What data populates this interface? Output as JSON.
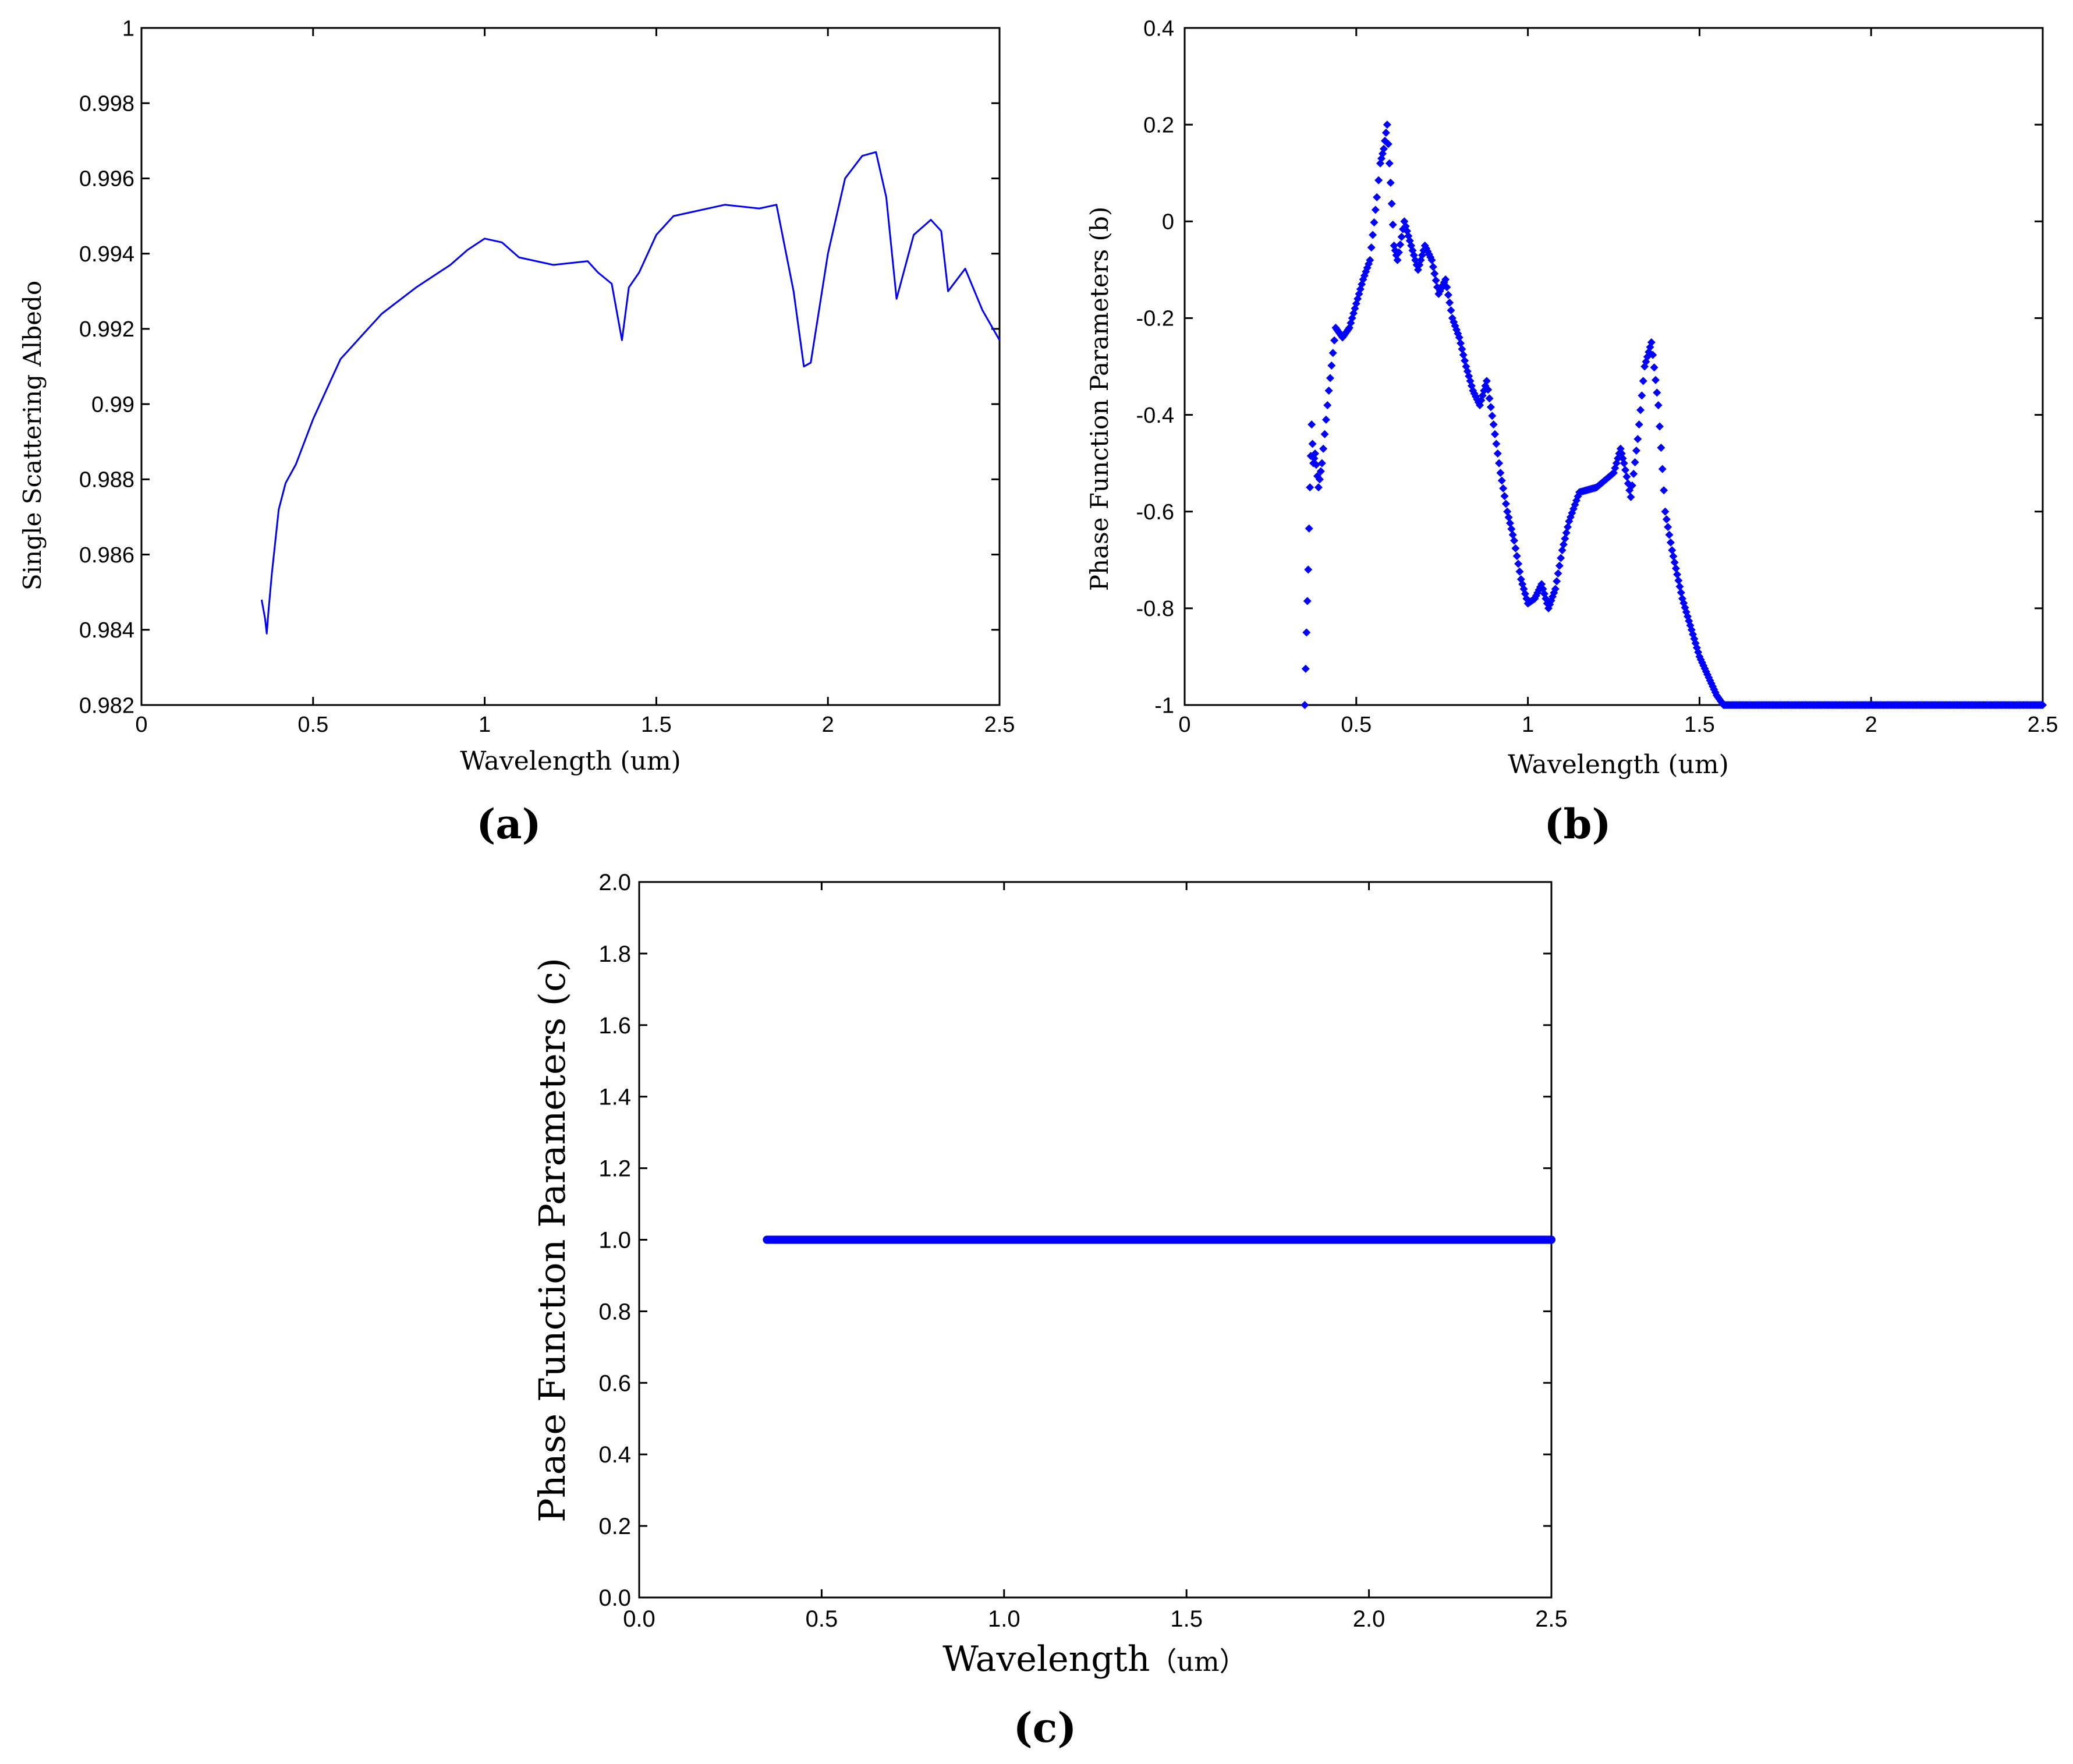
{
  "chart_data": [
    {
      "id": "a",
      "type": "line",
      "panel_label": "(a)",
      "xlabel": "Wavelength (um)",
      "ylabel": "Single Scattering Albedo",
      "xlim": [
        0,
        2.5
      ],
      "ylim": [
        0.982,
        1
      ],
      "xticks": [
        0,
        0.5,
        1,
        1.5,
        2,
        2.5
      ],
      "xtick_labels": [
        "0",
        "0.5",
        "1",
        "1.5",
        "2",
        "2.5"
      ],
      "yticks": [
        0.982,
        0.984,
        0.986,
        0.988,
        0.99,
        0.992,
        0.994,
        0.996,
        0.998,
        1
      ],
      "ytick_labels": [
        "0.982",
        "0.984",
        "0.986",
        "0.988",
        "0.99",
        "0.992",
        "0.994",
        "0.996",
        "0.998",
        "1"
      ],
      "color": "#0000ff",
      "series": [
        {
          "name": "albedo",
          "x": [
            0.35,
            0.36,
            0.365,
            0.37,
            0.38,
            0.4,
            0.42,
            0.45,
            0.5,
            0.55,
            0.58,
            0.6,
            0.65,
            0.7,
            0.8,
            0.9,
            0.95,
            1.0,
            1.05,
            1.1,
            1.2,
            1.3,
            1.33,
            1.37,
            1.4,
            1.42,
            1.45,
            1.5,
            1.55,
            1.6,
            1.7,
            1.8,
            1.85,
            1.9,
            1.93,
            1.95,
            2.0,
            2.05,
            2.1,
            2.14,
            2.17,
            2.2,
            2.25,
            2.3,
            2.33,
            2.35,
            2.4,
            2.45,
            2.5
          ],
          "y": [
            0.9848,
            0.9843,
            0.9839,
            0.9845,
            0.9855,
            0.9872,
            0.9879,
            0.9884,
            0.9896,
            0.9906,
            0.9912,
            0.9914,
            0.9919,
            0.9924,
            0.9931,
            0.9937,
            0.9941,
            0.9944,
            0.9943,
            0.9939,
            0.9937,
            0.9938,
            0.9935,
            0.9932,
            0.9917,
            0.9931,
            0.9935,
            0.9945,
            0.995,
            0.9951,
            0.9953,
            0.9952,
            0.9953,
            0.993,
            0.991,
            0.9911,
            0.994,
            0.996,
            0.9966,
            0.9967,
            0.9955,
            0.9928,
            0.9945,
            0.9949,
            0.9946,
            0.993,
            0.9936,
            0.9925,
            0.9917
          ]
        }
      ]
    },
    {
      "id": "b",
      "type": "scatter",
      "panel_label": "(b)",
      "xlabel": "Wavelength (um)",
      "ylabel": "Phase Function Parameters  (b)",
      "xlim": [
        0,
        2.5
      ],
      "ylim": [
        -1,
        0.4
      ],
      "xticks": [
        0,
        0.5,
        1,
        1.5,
        2,
        2.5
      ],
      "xtick_labels": [
        "0",
        "0.5",
        "1",
        "1.5",
        "2",
        "2.5"
      ],
      "yticks": [
        -1,
        -0.8,
        -0.6,
        -0.4,
        -0.2,
        0,
        0.2,
        0.4
      ],
      "ytick_labels": [
        "-1",
        "-0.8",
        "-0.6",
        "-0.4",
        "-0.2",
        "0",
        "0.2",
        "0.4"
      ],
      "color": "#0000ff",
      "series": [
        {
          "name": "b",
          "x": [
            0.35,
            0.355,
            0.36,
            0.365,
            0.37,
            0.375,
            0.38,
            0.39,
            0.4,
            0.42,
            0.44,
            0.46,
            0.48,
            0.5,
            0.52,
            0.54,
            0.56,
            0.57,
            0.58,
            0.59,
            0.6,
            0.61,
            0.62,
            0.64,
            0.66,
            0.68,
            0.7,
            0.72,
            0.74,
            0.76,
            0.78,
            0.8,
            0.82,
            0.84,
            0.86,
            0.88,
            0.9,
            0.92,
            0.94,
            0.96,
            0.98,
            1.0,
            1.02,
            1.04,
            1.06,
            1.08,
            1.1,
            1.12,
            1.15,
            1.2,
            1.25,
            1.27,
            1.28,
            1.3,
            1.32,
            1.34,
            1.36,
            1.38,
            1.4,
            1.42,
            1.45,
            1.5,
            1.55,
            1.57,
            1.6,
            1.7,
            1.8,
            1.9,
            2.0,
            2.1,
            2.2,
            2.3,
            2.4,
            2.5
          ],
          "y": [
            -1.0,
            -0.85,
            -0.72,
            -0.55,
            -0.42,
            -0.5,
            -0.48,
            -0.55,
            -0.5,
            -0.35,
            -0.22,
            -0.24,
            -0.22,
            -0.17,
            -0.12,
            -0.08,
            0.05,
            0.12,
            0.15,
            0.2,
            0.08,
            -0.05,
            -0.08,
            0.0,
            -0.05,
            -0.1,
            -0.05,
            -0.08,
            -0.15,
            -0.12,
            -0.2,
            -0.24,
            -0.3,
            -0.35,
            -0.38,
            -0.33,
            -0.42,
            -0.52,
            -0.6,
            -0.66,
            -0.74,
            -0.79,
            -0.78,
            -0.75,
            -0.8,
            -0.76,
            -0.68,
            -0.62,
            -0.56,
            -0.55,
            -0.52,
            -0.47,
            -0.5,
            -0.57,
            -0.45,
            -0.3,
            -0.25,
            -0.38,
            -0.6,
            -0.68,
            -0.78,
            -0.9,
            -0.98,
            -1.0,
            -1.0,
            -1.0,
            -1.0,
            -1.0,
            -1.0,
            -1.0,
            -1.0,
            -1.0,
            -1.0,
            -1.0
          ]
        }
      ]
    },
    {
      "id": "c",
      "type": "scatter",
      "panel_label": "(c)",
      "xlabel": "Wavelength",
      "xlabel_unit": "（um）",
      "ylabel": "Phase Function Parameters (c)",
      "xlim": [
        0,
        2.5
      ],
      "ylim": [
        0,
        2
      ],
      "xticks": [
        0,
        0.5,
        1,
        1.5,
        2,
        2.5
      ],
      "xtick_labels": [
        "0.0",
        "0.5",
        "1.0",
        "1.5",
        "2.0",
        "2.5"
      ],
      "yticks": [
        0,
        0.2,
        0.4,
        0.6,
        0.8,
        1.0,
        1.2,
        1.4,
        1.6,
        1.8,
        2.0
      ],
      "ytick_labels": [
        "0.0",
        "0.2",
        "0.4",
        "0.6",
        "0.8",
        "1.0",
        "1.2",
        "1.4",
        "1.6",
        "1.8",
        "2.0"
      ],
      "color": "#0000ff",
      "series": [
        {
          "name": "c",
          "x_range": [
            0.35,
            2.5
          ],
          "value": 1.0
        }
      ]
    }
  ]
}
